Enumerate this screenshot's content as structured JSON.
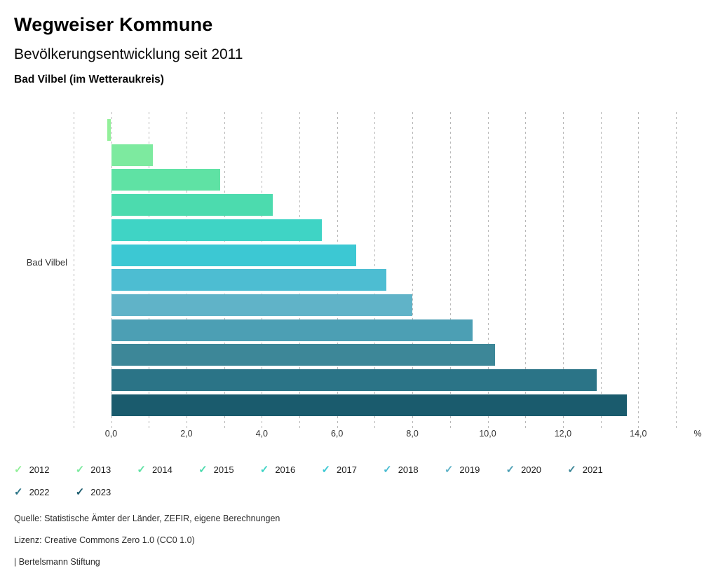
{
  "header": {
    "title": "Wegweiser Kommune",
    "subtitle": "Bevölkerungsentwicklung seit 2011",
    "region": "Bad Vilbel (im Wetteraukreis)"
  },
  "chart_data": {
    "type": "bar",
    "orientation": "horizontal",
    "title": "Bevölkerungsentwicklung seit 2011",
    "category_label": "Bad Vilbel",
    "unit_label": "%",
    "series": [
      {
        "year": "2012",
        "value": -0.1,
        "color": "#93f09a"
      },
      {
        "year": "2013",
        "value": 1.1,
        "color": "#7dea9f"
      },
      {
        "year": "2014",
        "value": 2.9,
        "color": "#5fe2a4"
      },
      {
        "year": "2015",
        "value": 4.3,
        "color": "#4cdbae"
      },
      {
        "year": "2016",
        "value": 5.6,
        "color": "#3fd4c5"
      },
      {
        "year": "2017",
        "value": 6.5,
        "color": "#3cc8d3"
      },
      {
        "year": "2018",
        "value": 7.3,
        "color": "#4dbdd2"
      },
      {
        "year": "2019",
        "value": 8.0,
        "color": "#60b3c8"
      },
      {
        "year": "2020",
        "value": 9.6,
        "color": "#4c9fb4"
      },
      {
        "year": "2021",
        "value": 10.2,
        "color": "#3d8798"
      },
      {
        "year": "2022",
        "value": 12.9,
        "color": "#2b7487"
      },
      {
        "year": "2023",
        "value": 13.7,
        "color": "#1a5b6d"
      }
    ],
    "x_axis": {
      "min": -1,
      "max": 15,
      "grid_step": 1,
      "ticks": [
        {
          "value": 0,
          "label": "0,0"
        },
        {
          "value": 2,
          "label": "2,0"
        },
        {
          "value": 4,
          "label": "4,0"
        },
        {
          "value": 6,
          "label": "6,0"
        },
        {
          "value": 8,
          "label": "8,0"
        },
        {
          "value": 10,
          "label": "10,0"
        },
        {
          "value": 12,
          "label": "12,0"
        },
        {
          "value": 14,
          "label": "14,0"
        }
      ],
      "unit": "%"
    },
    "grid": "dotted-vertical",
    "legend_position": "bottom"
  },
  "footer": {
    "source": "Quelle: Statistische Ämter der Länder, ZEFIR, eigene Berechnungen",
    "license": "Lizenz: Creative Commons Zero 1.0 (CC0 1.0)",
    "attribution": "| Bertelsmann Stiftung"
  }
}
